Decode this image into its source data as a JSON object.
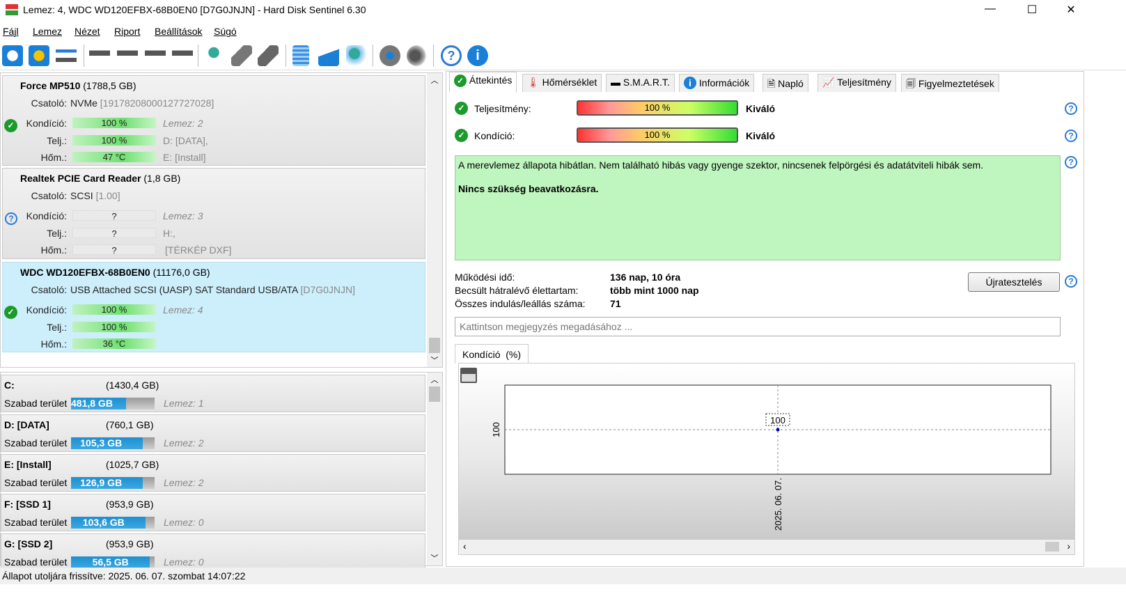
{
  "window": {
    "title": "Lemez: 4, WDC WD120EFBX-68B0EN0 [D7G0JNJN]  -  Hard Disk Sentinel 6.30",
    "minimize": "—",
    "maximize": "☐",
    "close": "✕"
  },
  "menu": [
    "Fájl",
    "Lemez",
    "Nézet",
    "Riport",
    "Beállítások",
    "Súgó"
  ],
  "toolbar": [
    "refresh-icon",
    "refresh-warning-icon",
    "drive-window-icon",
    "disk-sound-icon",
    "disk-schedule-icon",
    "disk-check-icon",
    "disk-search-icon",
    "disk-network-icon",
    "disk-test-icon",
    "disk-report-icon",
    "notepad-icon",
    "email-icon",
    "network-computer-icon",
    "settings-gear-icon",
    "speaker-icon",
    "help-icon",
    "info-icon"
  ],
  "disks": [
    {
      "name": "Force MP510",
      "size": "(1788,5 GB)",
      "iface_label": "Csatoló:",
      "iface": "NVMe",
      "serial": "[19178208000127727028]",
      "status": "ok",
      "health_label": "Kondíció:",
      "health": "100 %",
      "perf_label": "Telj.:",
      "perf": "100 %",
      "temp_label": "Hőm.:",
      "temp": "47 °C",
      "side1": "Lemez: 2",
      "side2": "D: [DATA],",
      "side3": "E: [Install]"
    },
    {
      "name": "Realtek PCIE Card Reader",
      "size": "(1,8 GB)",
      "iface_label": "Csatoló:",
      "iface": "SCSI",
      "serial": "[1.00]",
      "status": "unknown",
      "health_label": "Kondíció:",
      "health": "?",
      "perf_label": "Telj.:",
      "perf": "?",
      "temp_label": "Hőm.:",
      "temp": "?",
      "side1": "Lemez: 3",
      "side2": "H:,",
      "side3": "[TÉRKÉP DXF]"
    },
    {
      "name": "WDC WD120EFBX-68B0EN0",
      "size": "(11176,0 GB)",
      "iface_label": "Csatoló:",
      "iface": "USB Attached SCSI (UASP) SAT Standard USB/ATA",
      "serial": "[D7G0JNJN]",
      "status": "ok",
      "health_label": "Kondíció:",
      "health": "100 %",
      "perf_label": "Telj.:",
      "perf": "100 %",
      "temp_label": "Hőm.:",
      "temp": "36 °C",
      "side1": "Lemez: 4",
      "side2": "",
      "side3": ""
    }
  ],
  "volumes": [
    {
      "name": "C:",
      "size": "(1430,4 GB)",
      "free_label": "Szabad terület",
      "free": "481,8 GB",
      "free_pct": 66,
      "disk": "Lemez: 1"
    },
    {
      "name": "D: [DATA]",
      "size": "(760,1 GB)",
      "free_label": "Szabad terület",
      "free": "105,3 GB",
      "free_pct": 86,
      "disk": "Lemez: 2"
    },
    {
      "name": "E: [Install]",
      "size": "(1025,7 GB)",
      "free_label": "Szabad terület",
      "free": "126,9 GB",
      "free_pct": 86,
      "disk": "Lemez: 2"
    },
    {
      "name": "F: [SSD 1]",
      "size": "(953,9 GB)",
      "free_label": "Szabad terület",
      "free": "103,6 GB",
      "free_pct": 89,
      "disk": "Lemez: 0"
    },
    {
      "name": "G: [SSD 2]",
      "size": "(953,9 GB)",
      "free_label": "Szabad terület",
      "free": "56,5 GB",
      "free_pct": 94,
      "disk": "Lemez: 0"
    }
  ],
  "tabs": [
    "Áttekintés",
    "Hőmérséklet",
    "S.M.A.R.T.",
    "Információk",
    "Napló",
    "Teljesítmény",
    "Figyelmeztetések"
  ],
  "overview": {
    "perf_label": "Teljesítmény:",
    "perf_value": "100 %",
    "perf_pct": 100,
    "perf_rating": "Kiváló",
    "health_label": "Kondíció:",
    "health_value": "100 %",
    "health_pct": 100,
    "health_rating": "Kiváló",
    "message": "A merevlemez állapota hibátlan. Nem található hibás vagy gyenge szektor, nincsenek felpörgési és adatátviteli hibák sem.",
    "action": "Nincs szükség beavatkozásra.",
    "uptime_label": "Működési idő:",
    "uptime": "136 nap, 10 óra",
    "remaining_label": "Becsült hátralévő élettartam:",
    "remaining": "több mint 1000 nap",
    "starts_label": "Összes indulás/leállás száma:",
    "starts": "71",
    "retest_button": "Újratesztelés",
    "note_placeholder": "Kattintson megjegyzés megadásához ...",
    "chart_tab": "Kondíció  (%)"
  },
  "chart_data": {
    "type": "line",
    "x": [
      "2025. 06. 07."
    ],
    "series": [
      {
        "values": [
          100
        ]
      }
    ],
    "ytick_labels": [
      "100"
    ],
    "xtick_labels": [
      "2025. 06. 07."
    ],
    "data_labels": [
      "100"
    ],
    "grid": false
  },
  "status": "Állapot utoljára frissítve: 2025. 06. 07. szombat 14:07:22",
  "colors": {
    "ok": "#1c9a2b",
    "selected": "#cdeefb",
    "message_bg": "#bff5bf",
    "free_bar": "#1e8fd0"
  }
}
